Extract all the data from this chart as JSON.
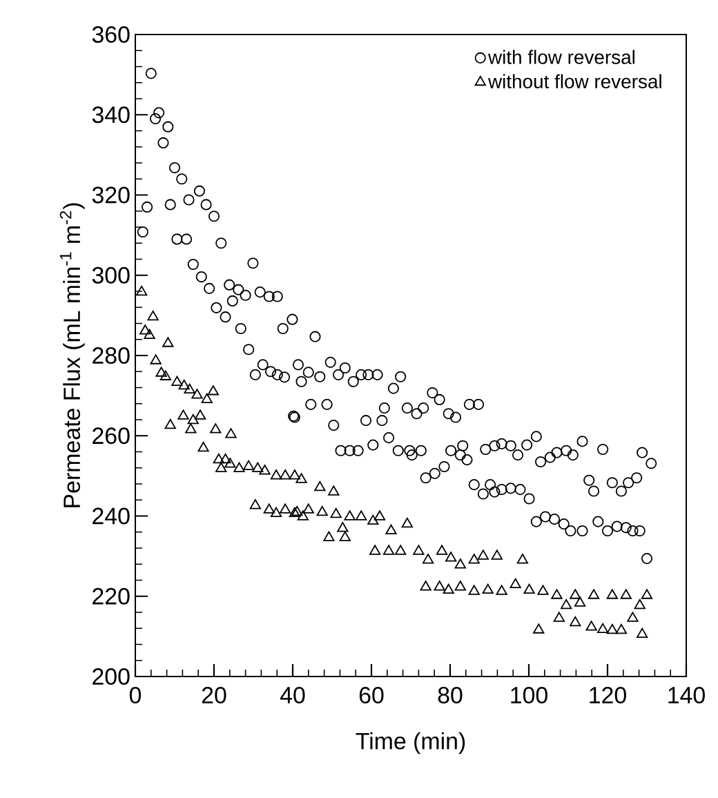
{
  "chart_data": {
    "type": "scatter",
    "xlabel": "Time (min)",
    "ylabel": "Permeate Flux (mL min$^{-1}$ m$^{-2}$)",
    "xlim": [
      0,
      140
    ],
    "ylim": [
      200,
      360
    ],
    "xticks": [
      0,
      20,
      40,
      60,
      80,
      100,
      120,
      140
    ],
    "yticks": [
      200,
      220,
      240,
      260,
      280,
      300,
      320,
      340,
      360
    ],
    "grid": false,
    "legend": "top right",
    "series": [
      {
        "name": "with flow reversal",
        "color": "#000000",
        "marker": "circle",
        "x": [
          1.9,
          3,
          4,
          5.1,
          6,
          7.1,
          8.3,
          8.9,
          10,
          10.6,
          11.8,
          13,
          13.6,
          14.7,
          16.3,
          16.8,
          18,
          18.8,
          20,
          20.6,
          21.8,
          22.9,
          23.9,
          24.7,
          26.2,
          26.8,
          28,
          28.8,
          29.9,
          30.5,
          31.7,
          32.4,
          34,
          34.4,
          36.1,
          36.1,
          37.5,
          37.9,
          39.9,
          40.2,
          40.5,
          41.4,
          42.2,
          44,
          44.6,
          45.7,
          46.9,
          48.7,
          49.6,
          50.4,
          51.6,
          52.2,
          53.3,
          54.5,
          55.4,
          56.6,
          57.4,
          58.6,
          59.2,
          60.4,
          61.5,
          62.7,
          63.3,
          64.4,
          65.6,
          66.8,
          67.4,
          69.1,
          69.7,
          70.3,
          71.5,
          72.6,
          73.2,
          73.8,
          75.5,
          76.1,
          77.3,
          78.5,
          79.6,
          80.2,
          81.4,
          82.6,
          83.2,
          84.3,
          84.9,
          86.1,
          87.2,
          88.4,
          89,
          90.2,
          91.3,
          91.3,
          93.1,
          93.1,
          95.4,
          95.4,
          97.2,
          97.8,
          99.5,
          100.1,
          101.9,
          101.9,
          103,
          104.2,
          105.4,
          106.5,
          107.1,
          108.9,
          109.5,
          110.6,
          111.2,
          113.6,
          113.6,
          115.3,
          116.5,
          117.6,
          118.8,
          120,
          121.2,
          122.4,
          123.5,
          124.7,
          125.3,
          126.4,
          127.4,
          128.2,
          128.8,
          130,
          131.1
        ],
        "values": [
          310.8,
          317,
          350.3,
          339,
          340.5,
          333,
          337,
          317.6,
          326.8,
          309,
          324,
          309,
          318.8,
          302.7,
          321,
          299.6,
          317.6,
          296.7,
          314.7,
          291.9,
          308,
          289.6,
          297.6,
          293.6,
          296.4,
          286.7,
          295,
          281.5,
          303,
          275.2,
          295.8,
          277.7,
          294.7,
          276,
          294.7,
          275.2,
          286.7,
          274.6,
          289,
          264.9,
          264.6,
          277.7,
          273.5,
          275.8,
          267.8,
          284.7,
          274.7,
          267.8,
          278.3,
          262.6,
          275.2,
          256.3,
          276.9,
          256.3,
          273.5,
          256.3,
          275.2,
          263.8,
          275.2,
          257.7,
          275.2,
          263.8,
          266.9,
          259.5,
          271.8,
          256.3,
          274.7,
          266.9,
          256.3,
          255.2,
          265.5,
          256.3,
          266.9,
          249.5,
          270.7,
          250.6,
          269,
          252.3,
          265.5,
          256.3,
          264.6,
          255.2,
          257.5,
          254,
          267.8,
          247.8,
          267.8,
          245.5,
          256.6,
          247.8,
          257.5,
          246,
          258,
          246.6,
          257.5,
          246.9,
          255.2,
          246.6,
          257.7,
          244.3,
          259.8,
          238.6,
          253.5,
          239.8,
          254.6,
          239.2,
          255.8,
          238,
          256.3,
          236.3,
          255.2,
          258.6,
          236.3,
          248.9,
          246.2,
          238.6,
          256.6,
          236.3,
          248.3,
          237.4,
          246.2,
          237.1,
          248.3,
          236.3,
          249.5,
          236.3,
          255.8,
          229.4,
          253.1
        ]
      },
      {
        "name": "without flow reversal",
        "color": "#000000",
        "marker": "triangle",
        "x": [
          1.6,
          2.5,
          3.6,
          4.5,
          5.2,
          6.6,
          7.7,
          8.3,
          8.9,
          10.6,
          12.2,
          12.4,
          13.8,
          14.1,
          14.7,
          15.7,
          16.5,
          17.3,
          18.2,
          19.8,
          20.4,
          21.2,
          21.8,
          22.9,
          24.1,
          24.3,
          26.4,
          28.8,
          30.5,
          31.1,
          32.9,
          34,
          35.8,
          35.8,
          38.1,
          38.1,
          40.5,
          40.5,
          41.1,
          42.2,
          42.6,
          44,
          46.9,
          47.5,
          49.2,
          50.4,
          51,
          52.7,
          53.3,
          54.5,
          57.4,
          60.4,
          60.9,
          62.1,
          64.4,
          65,
          67.4,
          69.1,
          72,
          73.8,
          74.4,
          77.3,
          77.9,
          79.6,
          80.2,
          82.6,
          82.6,
          86.1,
          86.1,
          88.4,
          89.6,
          91.9,
          93.1,
          96.6,
          98.4,
          100.1,
          102.5,
          103.6,
          107.1,
          107.7,
          109.5,
          111.8,
          111.8,
          113,
          115.9,
          116.5,
          118.8,
          121.2,
          121.2,
          123.5,
          124.7,
          126.4,
          128.2,
          128.8,
          130
        ],
        "values": [
          295.8,
          286.1,
          285,
          289.6,
          278.7,
          275.6,
          274.7,
          283,
          262.6,
          273.3,
          264.9,
          272.4,
          271.4,
          261.5,
          263.8,
          270.1,
          264.9,
          256.9,
          269,
          271,
          261.5,
          254,
          251.8,
          254,
          252.9,
          260.3,
          251.8,
          252.3,
          242.6,
          251.8,
          251.2,
          241.5,
          250,
          240.6,
          250,
          241.5,
          250,
          240.6,
          240.9,
          249.1,
          239.8,
          241.5,
          247.1,
          240.9,
          234.6,
          246,
          240.4,
          236.9,
          234.6,
          239.8,
          239.8,
          238.7,
          231.2,
          239.8,
          231.2,
          236.3,
          231.2,
          238,
          231.2,
          222.3,
          229,
          222.3,
          231.2,
          221.5,
          229.5,
          227.8,
          222.3,
          229,
          221.2,
          230,
          221.5,
          230,
          221.2,
          222.9,
          229,
          221.5,
          211.6,
          221.2,
          220.2,
          214.5,
          217.7,
          220.2,
          213.4,
          218.3,
          212.3,
          220.2,
          211.7,
          220.2,
          211.5,
          211.5,
          220.2,
          214.5,
          217.7,
          210.5,
          220.2
        ]
      }
    ]
  }
}
